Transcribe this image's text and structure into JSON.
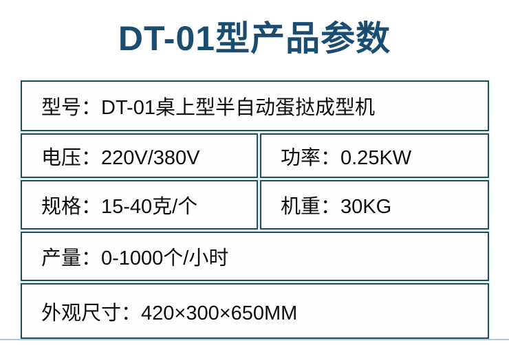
{
  "page": {
    "title": "DT-01型产品参数"
  },
  "table": {
    "rows": [
      {
        "type": "full",
        "cells": [
          {
            "text": "型号：DT-01桌上型半自动蛋挞成型机"
          }
        ]
      },
      {
        "type": "split",
        "cells": [
          {
            "text": "电压：220V/380V"
          },
          {
            "text": "功率：0.25KW"
          }
        ]
      },
      {
        "type": "split",
        "cells": [
          {
            "text": "规格：15-40克/个"
          },
          {
            "text": "机重：30KG"
          }
        ]
      },
      {
        "type": "full",
        "cells": [
          {
            "text": "产量：0-1000个/小时"
          }
        ]
      },
      {
        "type": "full",
        "cells": [
          {
            "text": "外观尺寸：420×300×650MM"
          }
        ]
      }
    ]
  },
  "colors": {
    "title": "#1b4d70",
    "table_border": "#224c58",
    "cell_background": "#fdfeff",
    "bottom_rule": "#aecbdb"
  }
}
